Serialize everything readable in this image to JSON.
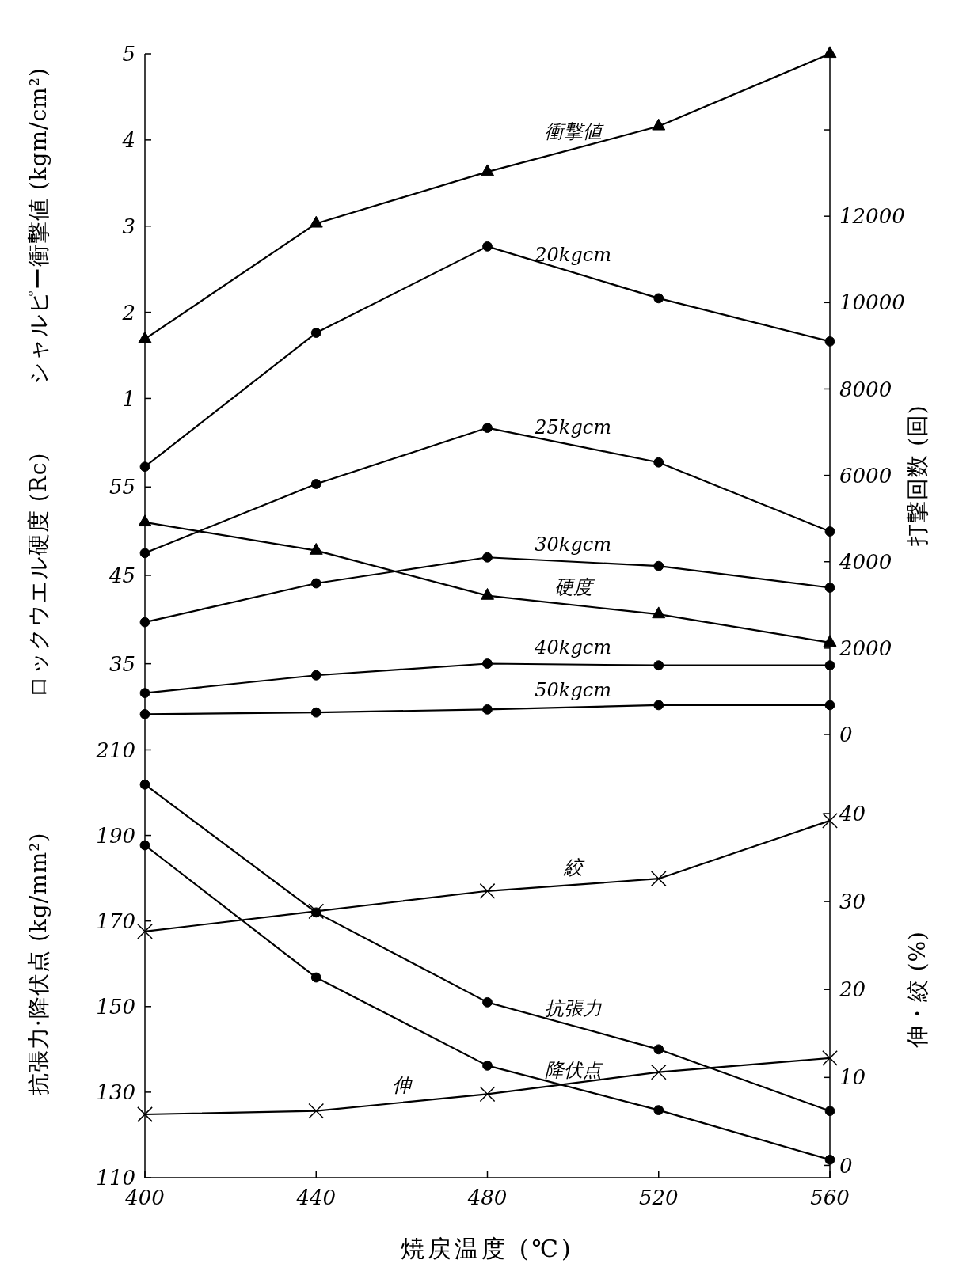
{
  "chart_data": [
    {
      "type": "line",
      "ylabel": "シャルピー衝撃値 (kgm/cm²)",
      "y2label": "打撃回数 (回)",
      "y3label": "ロックウエル硬度 (Rc)",
      "xlim": [
        400,
        560
      ],
      "ylim": [
        -2.9,
        5
      ],
      "yticks": [
        1,
        2,
        3,
        4,
        5
      ],
      "y2lim": [
        0,
        15760
      ],
      "y2ticks": [
        0,
        2000,
        4000,
        6000,
        8000,
        10000,
        12000,
        {
          "value": 14000,
          "label": null
        }
      ],
      "y3lim": [
        27,
        104
      ],
      "y3ticks": [
        35,
        45,
        55
      ],
      "tick_labels": "y",
      "grid": false,
      "line_style": "solid",
      "x": [
        400,
        440,
        480,
        520,
        560
      ],
      "series": [
        {
          "name": "衝撃値",
          "color": "#000000",
          "marker": "triangle",
          "values": [
            1.69,
            3.03,
            3.63,
            4.16,
            5.0
          ]
        },
        {
          "name": "20kgcm",
          "color": "#000000",
          "marker": "circle",
          "axis": "y2",
          "values": [
            6200,
            9300,
            11300,
            10100,
            9100
          ]
        },
        {
          "name": "25kgcm",
          "color": "#000000",
          "marker": "circle",
          "axis": "y2",
          "values": [
            4200,
            5800,
            7100,
            6300,
            4700
          ]
        },
        {
          "name": "30kgcm",
          "color": "#000000",
          "marker": "circle",
          "axis": "y2",
          "values": [
            2600,
            3500,
            4100,
            3900,
            3400
          ]
        },
        {
          "name": "硬度",
          "color": "#000000",
          "marker": "triangle",
          "axis": "y3",
          "values": [
            51.0,
            47.8,
            42.7,
            40.6,
            37.4
          ]
        },
        {
          "name": "40kgcm",
          "color": "#000000",
          "marker": "circle",
          "axis": "y2",
          "values": [
            960,
            1370,
            1640,
            1600,
            1600
          ]
        },
        {
          "name": "50kgcm",
          "color": "#000000",
          "marker": "circle",
          "axis": "y2",
          "values": [
            470,
            510,
            580,
            680,
            680
          ]
        }
      ]
    },
    {
      "type": "line",
      "xlabel": "焼戻温度 (℃)",
      "ylabel": "抗張力·降伏点 (kg/mm²)",
      "y2label": "伸・絞 (%)",
      "xlim": [
        400,
        560
      ],
      "xticks": [
        400,
        440,
        480,
        520,
        560
      ],
      "ylim": [
        110,
        213.6
      ],
      "yticks": [
        110,
        130,
        150,
        170,
        190,
        210
      ],
      "y2lim": [
        -1.4,
        49
      ],
      "y2ticks": [
        0,
        10,
        20,
        30,
        40
      ],
      "grid": false,
      "line_style": "solid",
      "x": [
        400,
        440,
        480,
        520,
        560
      ],
      "series": [
        {
          "name": "絞",
          "color": "#000000",
          "marker": "cross",
          "axis": "y2",
          "values": [
            26.6,
            28.9,
            31.2,
            32.6,
            39.2
          ]
        },
        {
          "name": "抗張力",
          "color": "#000000",
          "marker": "circle",
          "values": [
            201.9,
            172.0,
            151.0,
            140.0,
            125.6
          ]
        },
        {
          "name": "降伏点",
          "color": "#000000",
          "marker": "circle",
          "values": [
            187.7,
            156.8,
            136.2,
            125.8,
            114.2
          ]
        },
        {
          "name": "伸",
          "color": "#000000",
          "marker": "cross",
          "axis": "y2",
          "values": [
            5.8,
            6.2,
            8.1,
            10.6,
            12.2
          ]
        }
      ]
    }
  ]
}
